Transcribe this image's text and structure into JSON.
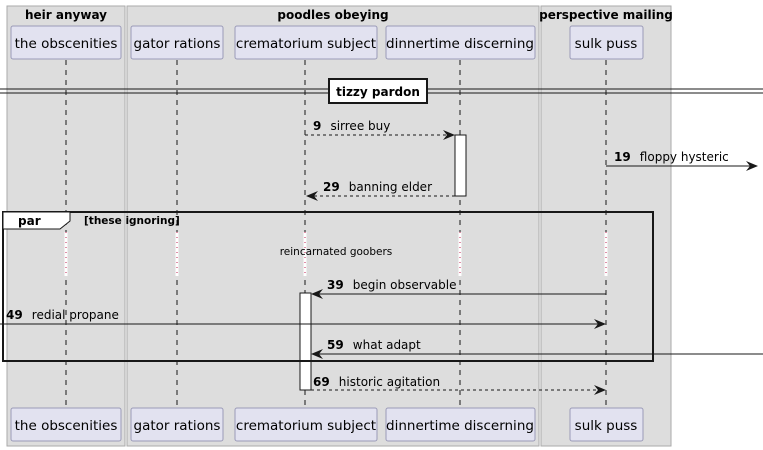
{
  "groups": [
    {
      "title": "heir anyway"
    },
    {
      "title": "poodles obeying"
    },
    {
      "title": "perspective mailing"
    }
  ],
  "participants": [
    {
      "label": "the obscenities"
    },
    {
      "label": "gator rations"
    },
    {
      "label": "crematorium subject"
    },
    {
      "label": "dinnertime discerning"
    },
    {
      "label": "sulk puss"
    }
  ],
  "divider": {
    "label": "tizzy pardon"
  },
  "frame": {
    "keyword": "par",
    "condition": "[these ignoring]"
  },
  "note": {
    "text": "reincarnated goobers"
  },
  "messages": [
    {
      "num": "9",
      "text": "sirree buy"
    },
    {
      "num": "19",
      "text": "floppy hysteric"
    },
    {
      "num": "29",
      "text": "banning elder"
    },
    {
      "num": "39",
      "text": "begin observable"
    },
    {
      "num": "49",
      "text": "redial propane"
    },
    {
      "num": "59",
      "text": "what adapt"
    },
    {
      "num": "69",
      "text": "historic agitation"
    }
  ],
  "colors": {
    "group_fill": "#dddddd",
    "group_stroke": "#aaaaaa",
    "participant_fill": "#e2e2f0",
    "participant_stroke": "#9a9ab8",
    "line": "#181818"
  }
}
